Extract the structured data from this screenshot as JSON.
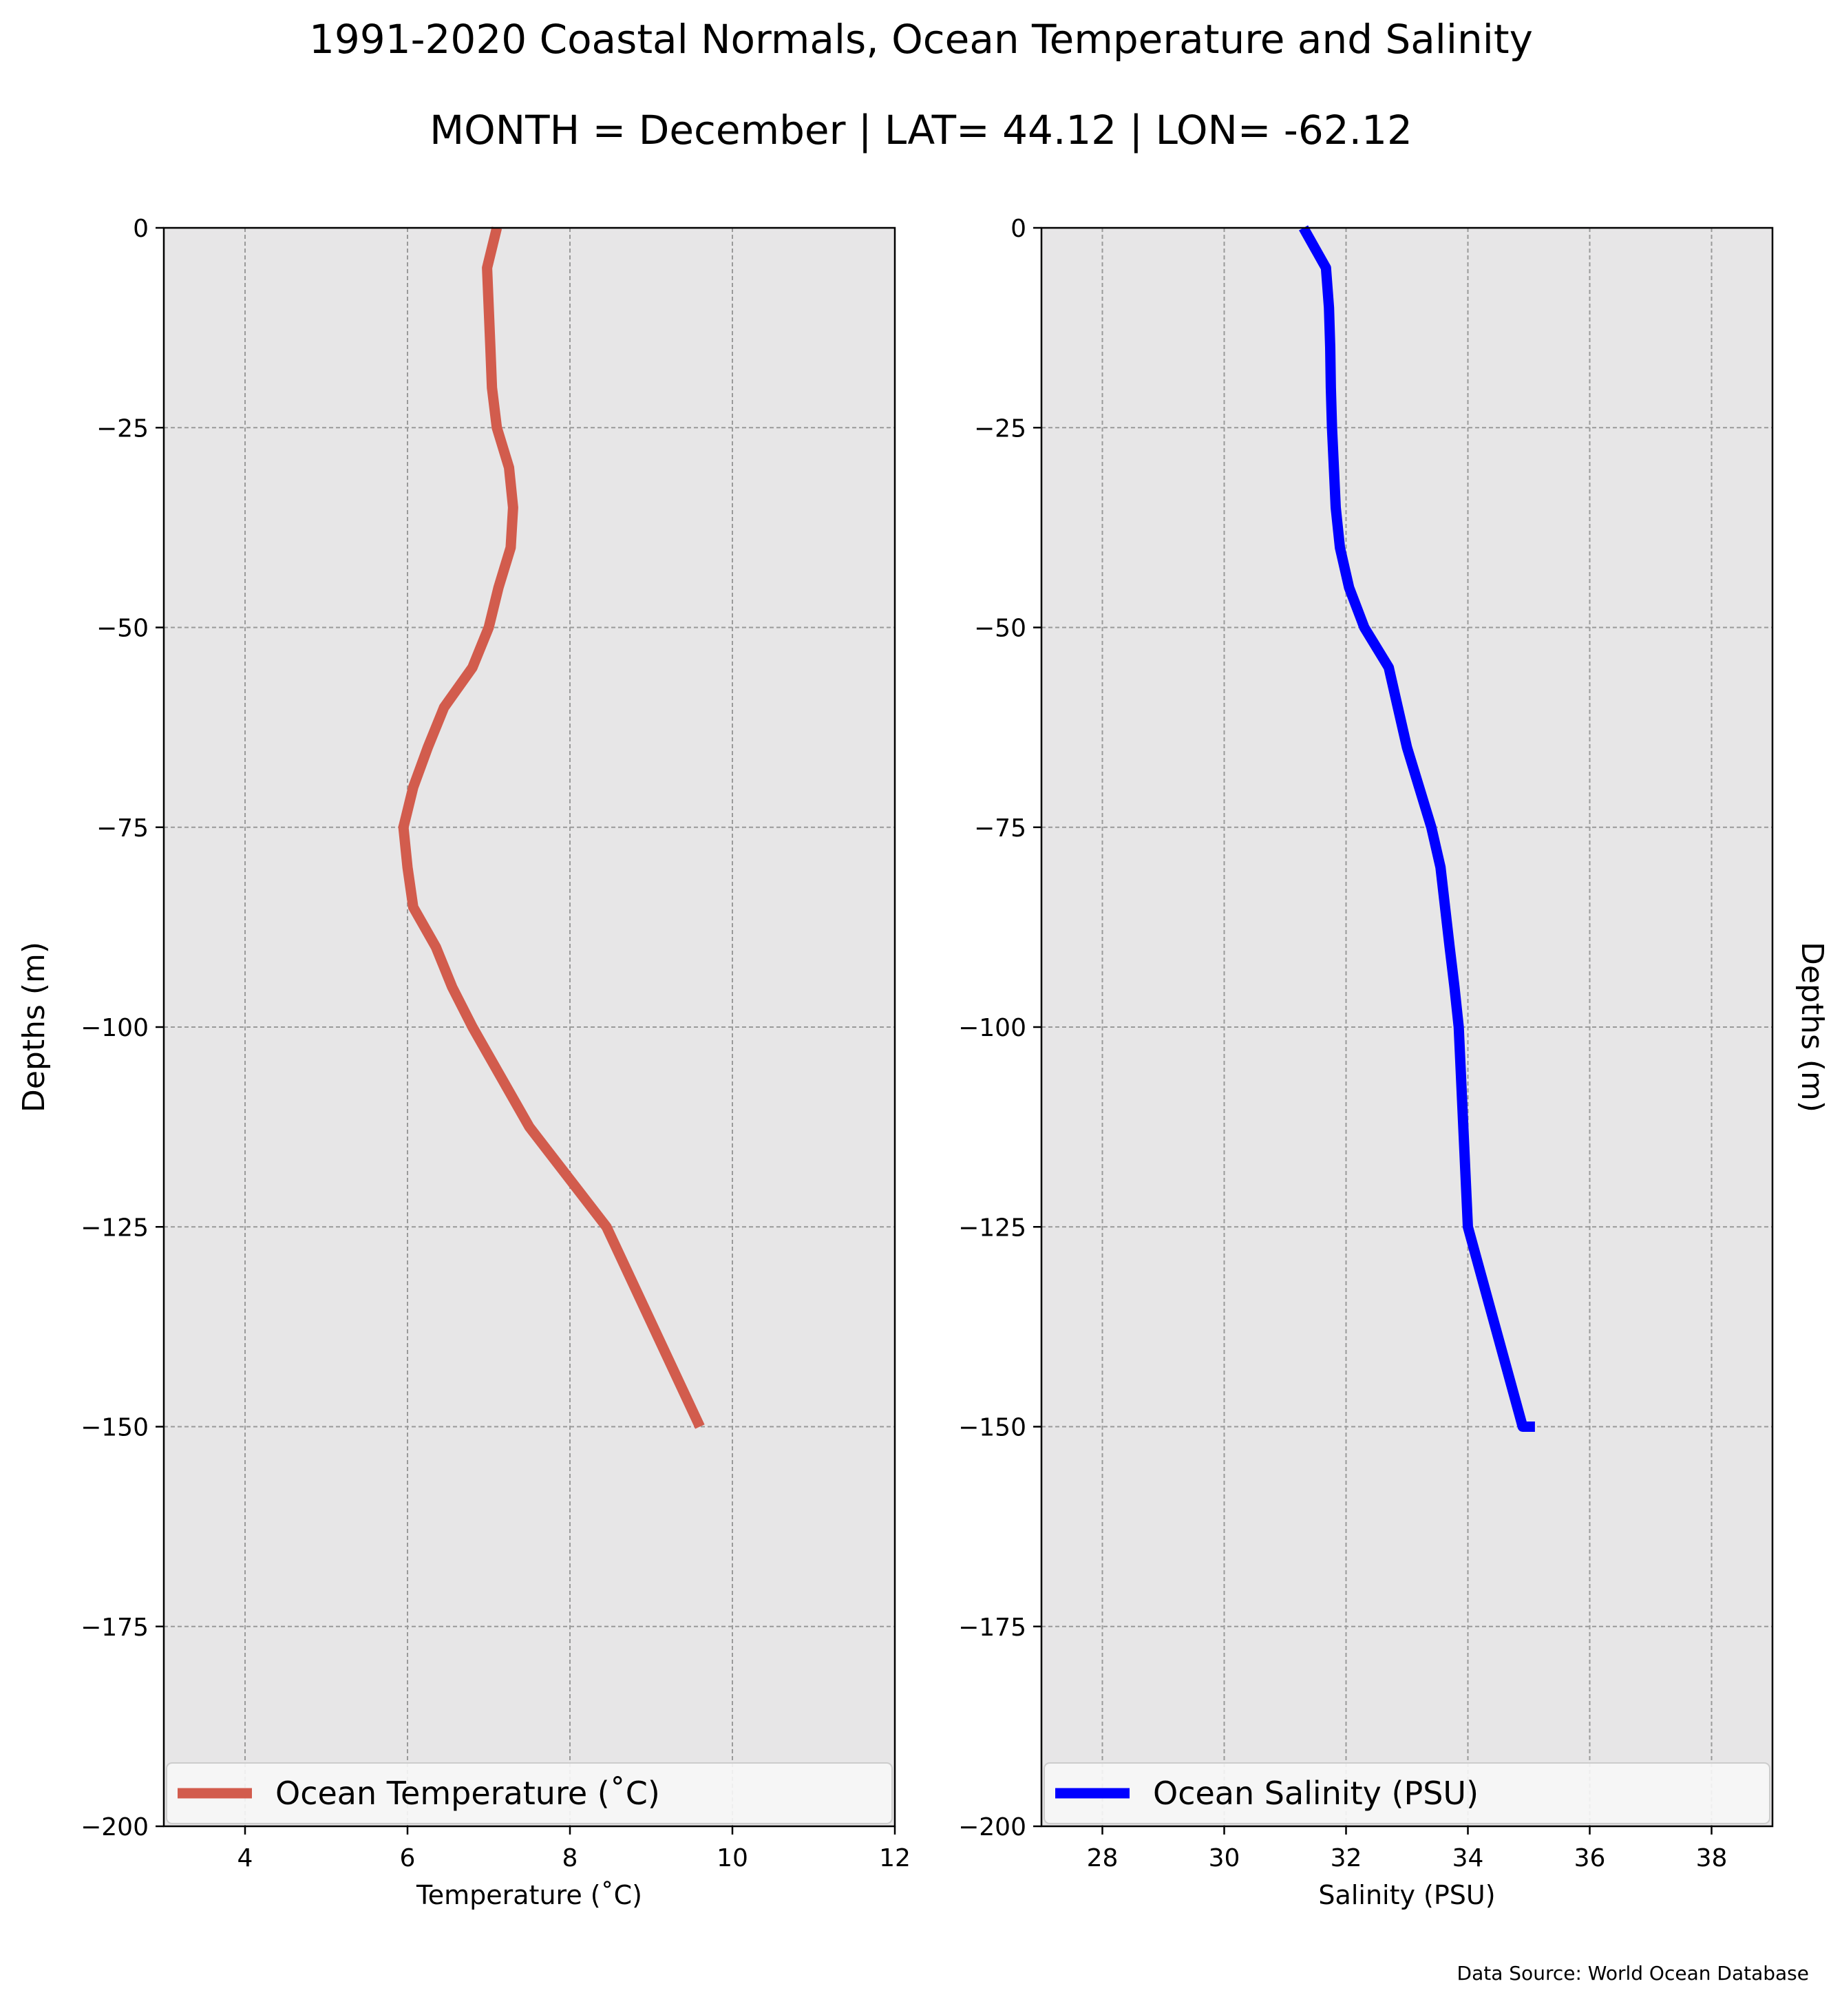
{
  "figure": {
    "title": "1991-2020 Coastal Normals, Ocean Temperature and Salinity",
    "subtitle": "MONTH = December | LAT= 44.12 | LON= -62.12",
    "source": "Data Source: World Ocean Database"
  },
  "chart_data": [
    {
      "type": "line",
      "xlabel": "Temperature ($^\\circ$C)",
      "xlabel_display": "Temperature (˚C)",
      "ylabel": "Depths (m)",
      "xlim": [
        3,
        12
      ],
      "ylim": [
        -200,
        0
      ],
      "xticks": [
        4,
        6,
        8,
        10,
        12
      ],
      "xticklabels": [
        "4",
        "6",
        "8",
        "10",
        "12"
      ],
      "yticks": [
        0,
        -25,
        -50,
        -75,
        -100,
        -125,
        -150,
        -175,
        -200
      ],
      "yticklabels": [
        "0",
        "−25",
        "−50",
        "−75",
        "−100",
        "−125",
        "−150",
        "−175",
        "−200"
      ],
      "grid": true,
      "background": "#e7e6e7",
      "legend_position": "bottom",
      "series": [
        {
          "name": "Ocean Temperature (˚C)",
          "color": "#d25c4d",
          "x": [
            7.1,
            6.98,
            7.0,
            7.02,
            7.04,
            7.1,
            7.25,
            7.3,
            7.27,
            7.12,
            7.0,
            6.8,
            6.45,
            6.25,
            6.07,
            5.95,
            6.0,
            6.07,
            6.35,
            6.55,
            6.8,
            7.5,
            8.45,
            9.6
          ],
          "y": [
            0,
            -5,
            -10,
            -15,
            -20,
            -25,
            -30,
            -35,
            -40,
            -45,
            -50,
            -55,
            -60,
            -65,
            -70,
            -75,
            -80,
            -85,
            -90,
            -95,
            -100,
            -112.5,
            -125,
            -150
          ]
        }
      ]
    },
    {
      "type": "line",
      "xlabel": "Salinity (PSU)",
      "ylabel": "Depths (m)",
      "xlim": [
        27,
        39
      ],
      "ylim": [
        -200,
        0
      ],
      "xticks": [
        28,
        30,
        32,
        34,
        36,
        38
      ],
      "xticklabels": [
        "28",
        "30",
        "32",
        "34",
        "36",
        "38"
      ],
      "yticks": [
        0,
        -25,
        -50,
        -75,
        -100,
        -125,
        -150,
        -175,
        -200
      ],
      "yticklabels": [
        "0",
        "−25",
        "−50",
        "−75",
        "−100",
        "−125",
        "−150",
        "−175",
        "−200"
      ],
      "grid": true,
      "background": "#e7e6e7",
      "legend_position": "bottom",
      "series": [
        {
          "name": "Ocean Salinity (PSU)",
          "color": "#0000ff",
          "x": [
            31.3,
            31.67,
            31.72,
            31.74,
            31.75,
            31.77,
            31.8,
            31.83,
            31.9,
            32.05,
            32.3,
            32.7,
            32.85,
            33.0,
            33.2,
            33.4,
            33.55,
            33.7,
            33.78,
            33.85,
            34.0,
            34.9,
            35.1
          ],
          "y": [
            0,
            -5,
            -10,
            -15,
            -20,
            -25,
            -30,
            -35,
            -40,
            -45,
            -50,
            -55,
            -60,
            -65,
            -70,
            -75,
            -80,
            -90,
            -95,
            -100,
            -125,
            -150,
            -150
          ]
        }
      ]
    }
  ]
}
